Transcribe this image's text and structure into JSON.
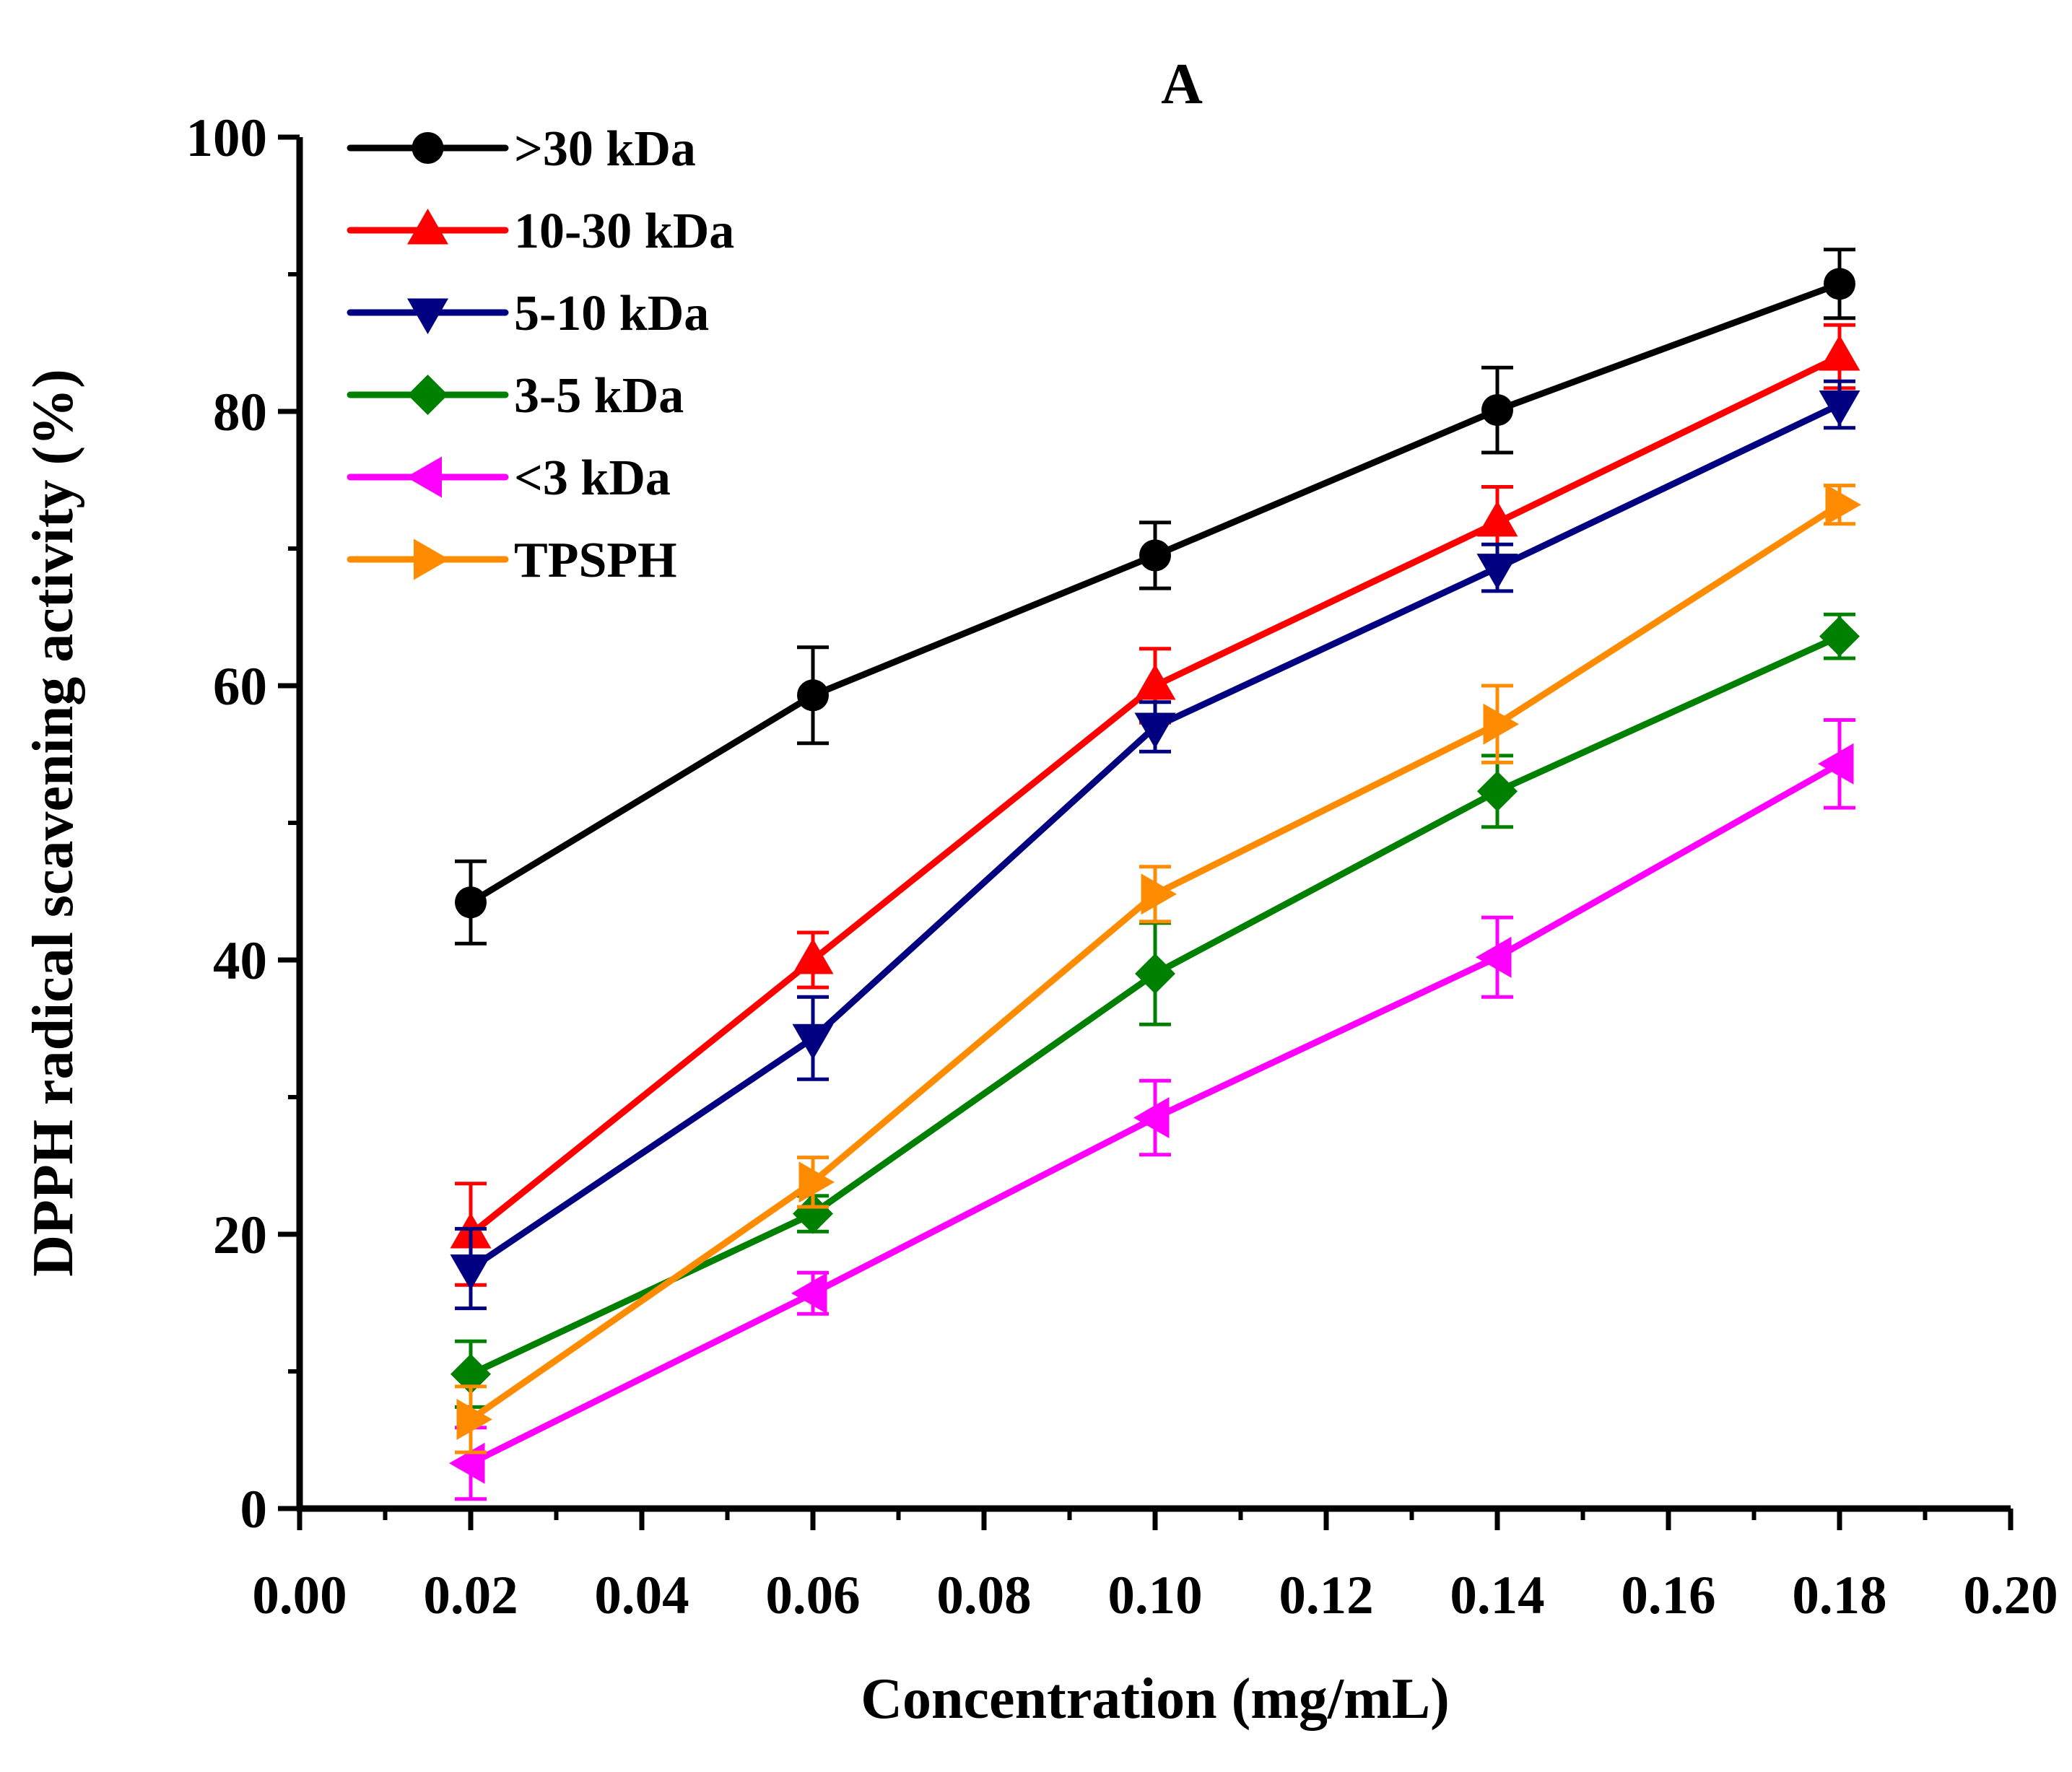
{
  "chart_data": {
    "type": "line",
    "title": "A",
    "xlabel": "Concentration (mg/mL)",
    "ylabel": "DPPH radical scavening activity (%)",
    "xlim": [
      0.0,
      0.2
    ],
    "ylim": [
      0,
      100
    ],
    "x_ticks": [
      "0.00",
      "0.02",
      "0.04",
      "0.06",
      "0.08",
      "0.10",
      "0.12",
      "0.14",
      "0.16",
      "0.18",
      "0.20"
    ],
    "y_ticks": [
      "0",
      "20",
      "40",
      "60",
      "80",
      "100"
    ],
    "grid": false,
    "legend_position": "top-left",
    "x": [
      0.02,
      0.06,
      0.1,
      0.14,
      0.18
    ],
    "series": [
      {
        "name": ">30 kDa",
        "color": "#000000",
        "marker": "circle",
        "values": [
          44.2,
          59.3,
          69.5,
          80.1,
          89.3
        ],
        "errors": [
          3.0,
          3.5,
          2.4,
          3.1,
          2.5
        ]
      },
      {
        "name": "10-30 kDa",
        "color": "#ff0000",
        "marker": "triangle-up",
        "values": [
          20.0,
          40.0,
          60.0,
          71.9,
          84.0
        ],
        "errors": [
          3.7,
          2.0,
          2.7,
          2.6,
          2.3
        ]
      },
      {
        "name": "5-10 kDa",
        "color": "#000080",
        "marker": "triangle-down",
        "values": [
          17.5,
          34.3,
          57.0,
          68.6,
          80.5
        ],
        "errors": [
          2.9,
          3.0,
          1.8,
          1.7,
          1.7
        ]
      },
      {
        "name": "3-5 kDa",
        "color": "#008000",
        "marker": "diamond",
        "values": [
          9.8,
          21.5,
          39.0,
          52.3,
          63.6
        ],
        "errors": [
          2.4,
          1.3,
          3.7,
          2.6,
          1.6
        ]
      },
      {
        "name": "<3 kDa",
        "color": "#ff00ff",
        "marker": "triangle-left",
        "values": [
          3.3,
          15.7,
          28.5,
          40.2,
          54.3
        ],
        "errors": [
          2.6,
          1.5,
          2.7,
          2.9,
          3.2
        ]
      },
      {
        "name": "TPSPH",
        "color": "#ff8c00",
        "marker": "triangle-right",
        "values": [
          6.5,
          23.8,
          44.8,
          57.2,
          73.2
        ],
        "errors": [
          2.4,
          1.8,
          2.0,
          2.8,
          1.4
        ]
      }
    ]
  }
}
